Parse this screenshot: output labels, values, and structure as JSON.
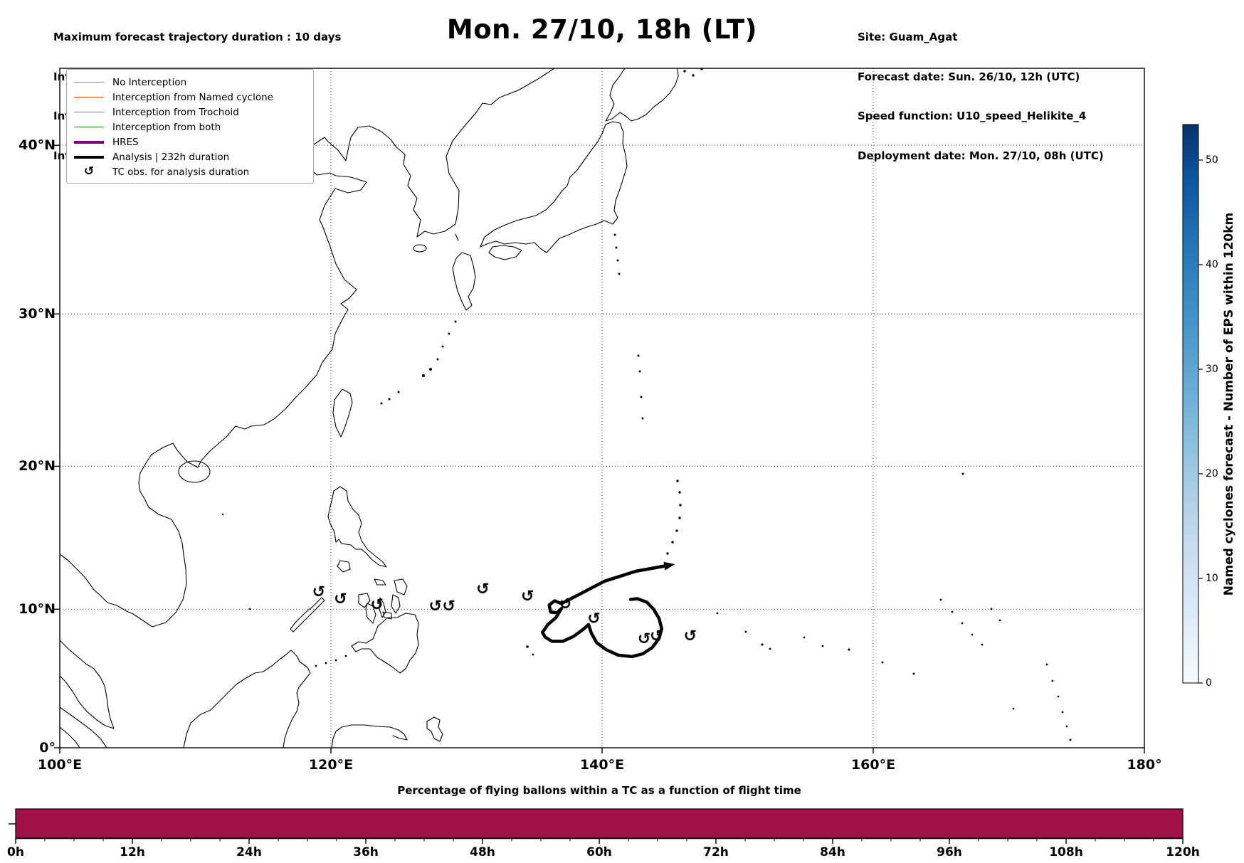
{
  "figure": {
    "title": "Mon. 27/10, 18h (LT)",
    "header_left": {
      "lines": [
        "Maximum forecast trajectory duration : 10 days",
        "Intercept distance: 300km",
        "Intercept RW2 (EPS):  30km/h2",
        "Intercept RW2 (HRES): 30km/h2"
      ]
    },
    "header_right": {
      "lines": [
        "Site: Guam_Agat",
        "Forecast date: Sun. 26/10, 12h (UTC)",
        "Speed function: U10_speed_Helikite_4",
        "Deployment date: Mon. 27/10, 08h (UTC)"
      ]
    }
  },
  "legend": {
    "entries": [
      {
        "label": "No Interception",
        "color": "#888888",
        "style": "thin-line"
      },
      {
        "label": "Interception from Named cyclone",
        "color": "#ff4500",
        "style": "thin-line"
      },
      {
        "label": "Interception from Trochoid",
        "color": "#8f8f00",
        "style": "thin-line"
      },
      {
        "label": "Interception from both",
        "color": "#228b22",
        "style": "thin-line"
      },
      {
        "label": "HRES",
        "color": "#800080",
        "style": "thick-line"
      },
      {
        "label": "Analysis | 232h duration",
        "color": "#000000",
        "style": "thick-line"
      },
      {
        "label": "TC obs. for analysis duration",
        "color": "#000000",
        "style": "symbol",
        "symbol": "↺"
      }
    ]
  },
  "map": {
    "x_ticks": [
      {
        "label": "100°E",
        "lon": 100
      },
      {
        "label": "120°E",
        "lon": 120
      },
      {
        "label": "140°E",
        "lon": 140
      },
      {
        "label": "160°E",
        "lon": 160
      },
      {
        "label": "180°",
        "lon": 180
      }
    ],
    "y_ticks": [
      {
        "label": "0°",
        "lat": 0
      },
      {
        "label": "10°N",
        "lat": 10
      },
      {
        "label": "20°N",
        "lat": 20
      },
      {
        "label": "30°N",
        "lat": 30
      },
      {
        "label": "40°N",
        "lat": 40
      }
    ],
    "gridline_lons": [
      120,
      140,
      160
    ],
    "gridline_lats": [
      10,
      20,
      30,
      40
    ]
  },
  "colorbar": {
    "label": "Named cyclones forecast - Number of EPS within 120km",
    "ticks": [
      0,
      10,
      20,
      30,
      40,
      50
    ],
    "vmin": 0,
    "vmax": 52,
    "colormap": "Blues"
  },
  "bottom_chart": {
    "title": "Percentage of flying ballons within a TC as a function of flight time",
    "x_tick_labels": [
      "0h",
      "12h",
      "24h",
      "36h",
      "48h",
      "60h",
      "72h",
      "84h",
      "96h",
      "108h",
      "120h"
    ],
    "bar_color": "#a11047"
  },
  "chart_data": [
    {
      "type": "line",
      "name": "analysis-track-map-overlay",
      "title": "Mon. 27/10, 18h (LT)",
      "x_axis_ticks": [
        "100°E",
        "120°E",
        "140°E",
        "160°E",
        "180°"
      ],
      "y_axis_ticks": [
        "0°",
        "10°N",
        "20°N",
        "30°N",
        "40°N"
      ],
      "track_lonlat": [
        [
          144.8,
          13.1
        ],
        [
          142.5,
          12.7
        ],
        [
          140.2,
          12.0
        ],
        [
          138.4,
          11.1
        ],
        [
          137.0,
          10.4
        ],
        [
          136.5,
          10.6
        ],
        [
          136.1,
          10.3
        ],
        [
          136.2,
          9.8
        ],
        [
          136.7,
          9.75
        ],
        [
          137.0,
          10.05
        ],
        [
          136.6,
          9.4
        ],
        [
          136.0,
          8.9
        ],
        [
          135.6,
          8.35
        ],
        [
          135.8,
          8.0
        ],
        [
          136.3,
          7.7
        ],
        [
          137.1,
          7.7
        ],
        [
          137.9,
          8.05
        ],
        [
          138.6,
          8.55
        ],
        [
          139.0,
          8.9
        ],
        [
          139.2,
          8.3
        ],
        [
          139.6,
          7.6
        ],
        [
          140.3,
          7.1
        ],
        [
          141.2,
          6.7
        ],
        [
          142.2,
          6.6
        ],
        [
          143.0,
          6.8
        ],
        [
          143.7,
          7.25
        ],
        [
          144.2,
          7.9
        ],
        [
          144.4,
          8.6
        ],
        [
          144.2,
          9.35
        ],
        [
          143.8,
          10.0
        ],
        [
          143.3,
          10.5
        ],
        [
          142.6,
          10.75
        ],
        [
          142.1,
          10.7
        ]
      ],
      "tc_obs_lonlat": [
        [
          119.1,
          11.2
        ],
        [
          120.7,
          10.7
        ],
        [
          123.4,
          10.3
        ],
        [
          127.7,
          10.2
        ],
        [
          128.7,
          10.2
        ],
        [
          131.2,
          11.4
        ],
        [
          134.5,
          10.9
        ],
        [
          137.3,
          10.35
        ],
        [
          139.4,
          9.3
        ],
        [
          143.1,
          7.85
        ],
        [
          144.0,
          8.05
        ],
        [
          146.5,
          8.05
        ]
      ],
      "tc_symbol": "↺"
    },
    {
      "type": "bar",
      "title": "Percentage of flying ballons within a TC as a function of flight time",
      "x_hours_range": [
        0,
        120
      ],
      "x_tick_labels": [
        "0h",
        "12h",
        "24h",
        "36h",
        "48h",
        "60h",
        "72h",
        "84h",
        "96h",
        "108h",
        "120h"
      ],
      "series": [
        {
          "name": "percent_within_tc",
          "x_hours": [
            0,
            120
          ],
          "values": [
            100,
            100
          ],
          "display": "single constant full-height bar spanning 0h to 120h"
        }
      ],
      "bar_color": "#a11047"
    },
    {
      "type": "colorbar",
      "label": "Named cyclones forecast - Number of EPS within 120km",
      "ticks": [
        0,
        10,
        20,
        30,
        40,
        50
      ],
      "range": [
        0,
        52
      ],
      "colormap": "Blues"
    }
  ]
}
